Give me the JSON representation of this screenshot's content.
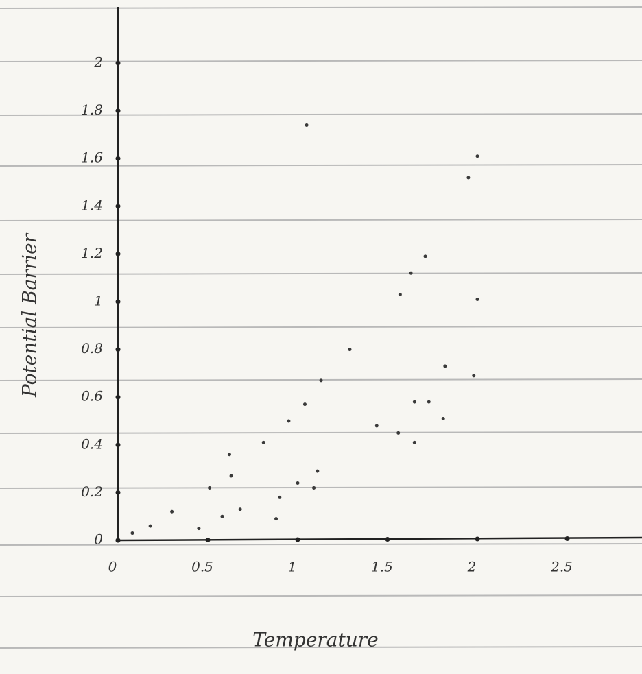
{
  "chart_data": {
    "type": "scatter",
    "x_label": "Temperature",
    "y_label": "Potential Barrier",
    "color": "#3a3a3a",
    "xlim": [
      0,
      2.9
    ],
    "ylim": [
      0,
      2.2
    ],
    "xticks": [
      0,
      0.5,
      1,
      1.5,
      2,
      2.5
    ],
    "yticks": [
      0,
      0.2,
      0.4,
      0.6,
      0.8,
      1,
      1.2,
      1.4,
      1.6,
      1.8,
      2
    ],
    "x": [
      1.05,
      2.0,
      1.71,
      1.63,
      1.57,
      2.0,
      1.13,
      0.95,
      1.04,
      0.81,
      0.62,
      0.63,
      0.51,
      0.3,
      0.18,
      0.08,
      0.45,
      0.58,
      0.68,
      0.9,
      1.0,
      1.09,
      1.11,
      0.88,
      1.44,
      1.56,
      1.65,
      1.73,
      1.81,
      1.65,
      1.29,
      1.95,
      1.82,
      1.98
    ],
    "y": [
      1.74,
      1.61,
      1.19,
      1.12,
      1.03,
      1.01,
      0.67,
      0.5,
      0.57,
      0.41,
      0.36,
      0.27,
      0.22,
      0.12,
      0.06,
      0.03,
      0.05,
      0.1,
      0.13,
      0.18,
      0.24,
      0.22,
      0.29,
      0.09,
      0.48,
      0.45,
      0.58,
      0.58,
      0.51,
      0.41,
      0.8,
      1.52,
      0.73,
      0.69
    ]
  }
}
